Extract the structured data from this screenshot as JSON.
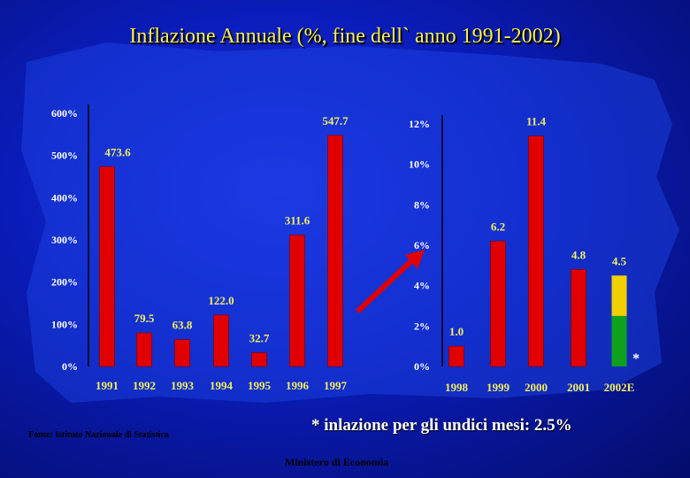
{
  "title": "Inflazione Annuale (%, fine dell` anno 1991-2002)",
  "source": "Fonte: Istituto Nazionale di Statistica",
  "footnote": "* inlazione per gli undici mesi: 2.5%",
  "footer": "Ministero di Economia",
  "colors": {
    "bar": "#e00000",
    "bar_top": "#f0d000",
    "bar_bottom": "#10a020",
    "tick_text": "#ffffff",
    "value_text": "#f2ee60",
    "year_text": "#f2ee60",
    "arrow": "#e00000"
  },
  "chart_data": [
    {
      "type": "bar",
      "categories": [
        "1991",
        "1992",
        "1993",
        "1994",
        "1995",
        "1996",
        "1997"
      ],
      "values": [
        473.6,
        79.5,
        63.8,
        122.0,
        32.7,
        311.6,
        547.7
      ],
      "data_labels": [
        "473.6",
        "79.5",
        "63.8",
        "122.0",
        "32.7",
        "311.6",
        "547.7"
      ],
      "yticks": [
        "0%",
        "100%",
        "200%",
        "300%",
        "400%",
        "500%",
        "600%"
      ],
      "ylim": [
        0,
        600
      ]
    },
    {
      "type": "bar",
      "categories": [
        "1998",
        "1999",
        "2000",
        "2001",
        "2002E"
      ],
      "values": [
        1.0,
        6.2,
        11.4,
        4.8,
        4.5
      ],
      "data_labels": [
        "1.0",
        "6.2",
        "11.4",
        "4.8",
        "4.5"
      ],
      "yticks": [
        "0%",
        "2%",
        "4%",
        "6%",
        "8%",
        "10%",
        "12%"
      ],
      "ylim": [
        0,
        12
      ],
      "stacked_last": {
        "bottom": 2.5,
        "top": 2.0
      },
      "marker": "*"
    }
  ]
}
